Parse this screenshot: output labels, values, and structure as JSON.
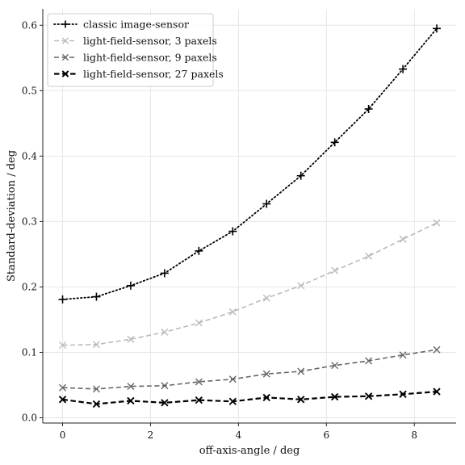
{
  "chart_data": {
    "type": "line",
    "title": "",
    "xlabel": "off-axis-angle / deg",
    "ylabel": "Standard-deviation / deg",
    "xlim": [
      -0.45,
      8.95
    ],
    "ylim": [
      -0.008,
      0.625
    ],
    "xticks": [
      0,
      2,
      4,
      6,
      8
    ],
    "yticks": [
      0.0,
      0.1,
      0.2,
      0.3,
      0.4,
      0.5,
      0.6
    ],
    "xtick_labels": [
      "0",
      "2",
      "4",
      "6",
      "8"
    ],
    "ytick_labels": [
      "0.0",
      "0.1",
      "0.2",
      "0.3",
      "0.4",
      "0.5",
      "0.6"
    ],
    "grid": true,
    "legend_position": "top-left",
    "x": [
      0,
      0.77,
      1.55,
      2.32,
      3.1,
      3.87,
      4.64,
      5.42,
      6.19,
      6.96,
      7.74,
      8.51
    ],
    "series": [
      {
        "name": "classic image-sensor",
        "color": "#000000",
        "dash": "dotted",
        "marker": "plus",
        "values": [
          0.181,
          0.185,
          0.202,
          0.221,
          0.255,
          0.285,
          0.327,
          0.37,
          0.421,
          0.472,
          0.533,
          0.595
        ]
      },
      {
        "name": "light-field-sensor, 3 paxels",
        "color": "#bbbbbb",
        "dash": "dashed",
        "marker": "x",
        "values": [
          0.111,
          0.112,
          0.12,
          0.131,
          0.145,
          0.162,
          0.183,
          0.202,
          0.225,
          0.247,
          0.273,
          0.298
        ]
      },
      {
        "name": "light-field-sensor, 9 paxels",
        "color": "#666666",
        "dash": "dashed",
        "marker": "x",
        "values": [
          0.046,
          0.044,
          0.048,
          0.049,
          0.055,
          0.059,
          0.067,
          0.071,
          0.08,
          0.087,
          0.096,
          0.104
        ]
      },
      {
        "name": "light-field-sensor, 27 paxels",
        "color": "#000000",
        "dash": "dashed-bold",
        "marker": "x",
        "values": [
          0.028,
          0.021,
          0.026,
          0.023,
          0.027,
          0.025,
          0.031,
          0.028,
          0.032,
          0.033,
          0.036,
          0.04
        ]
      }
    ]
  }
}
